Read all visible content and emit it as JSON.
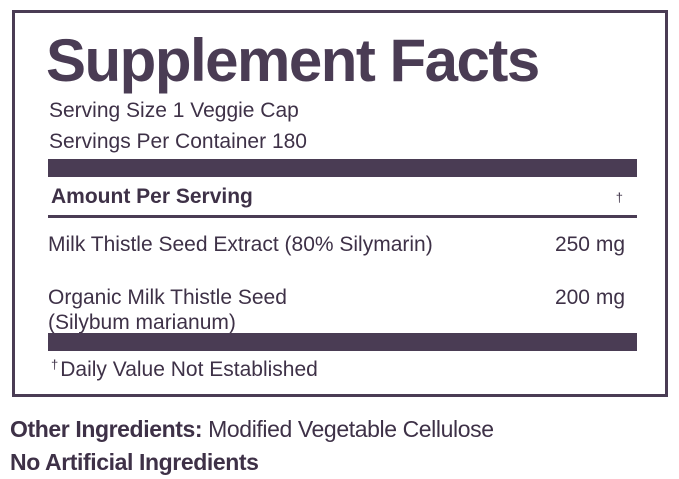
{
  "facts_panel": {
    "title": "Supplement Facts",
    "serving_size": "Serving Size 1 Veggie Cap",
    "servings_per_container": "Servings Per Container 180",
    "amount_header": "Amount Per Serving",
    "header_dagger": "†",
    "ingredients": [
      {
        "name_line1": "Milk Thistle Seed Extract (80% Silymarin)",
        "amount": "250 mg"
      },
      {
        "name_line1": "Organic Milk Thistle Seed",
        "name_line2": "(Silybum marianum)",
        "amount": "200 mg"
      }
    ],
    "footnote_dagger": "†",
    "footnote_text": "Daily Value Not Established"
  },
  "below_panel": {
    "other_label": "Other Ingredients:",
    "other_value": " Modified Vegetable Cellulose",
    "no_artificial": "No Artificial Ingredients"
  },
  "colors": {
    "brand_purple": "#4a3c54",
    "text": "#3e3147",
    "background": "#ffffff"
  }
}
